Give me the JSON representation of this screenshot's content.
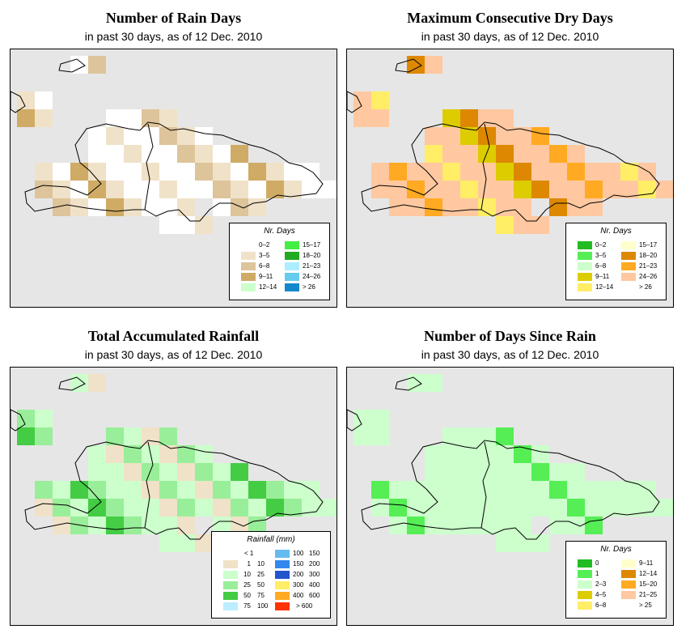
{
  "colors": {
    "ocean": "#e6e6e6",
    "border": "#000000"
  },
  "panels": [
    {
      "id": "rain-days",
      "title": "Number of Rain Days",
      "subtitle": "in past 30 days, as of  12 Dec. 2010",
      "legend": {
        "title": "Nr. Days",
        "columns": 2,
        "items": [
          {
            "label": "0–2",
            "color": "#ffffff"
          },
          {
            "label": "3–5",
            "color": "#f0e2c8"
          },
          {
            "label": "6–8",
            "color": "#ddc49a"
          },
          {
            "label": "9–11",
            "color": "#cfab66"
          },
          {
            "label": "12–14",
            "color": "#ccffcc"
          },
          {
            "label": "15–17",
            "color": "#44ee44"
          },
          {
            "label": "18–20",
            "color": "#22aa22"
          },
          {
            "label": "21–23",
            "color": "#aaeeff"
          },
          {
            "label": "24–26",
            "color": "#66ccee"
          },
          {
            "label": "> 26",
            "color": "#1188cc"
          }
        ]
      }
    },
    {
      "id": "max-dry-days",
      "title": "Maximum Consecutive Dry Days",
      "subtitle": "in past 30 days, as of  12 Dec. 2010",
      "legend": {
        "title": "Nr. Days",
        "columns": 2,
        "items": [
          {
            "label": "0–2",
            "color": "#22bb22"
          },
          {
            "label": "3–5",
            "color": "#55ee55"
          },
          {
            "label": "6–8",
            "color": "#ccffcc"
          },
          {
            "label": "9–11",
            "color": "#ddcc00"
          },
          {
            "label": "12–14",
            "color": "#ffee66"
          },
          {
            "label": "15–17",
            "color": "#ffffcc"
          },
          {
            "label": "18–20",
            "color": "#dd8800"
          },
          {
            "label": "21–23",
            "color": "#ffaa22"
          },
          {
            "label": "24–26",
            "color": "#ffc8a0"
          },
          {
            "label": "> 26",
            "color": "#ffffff"
          }
        ]
      }
    },
    {
      "id": "total-rainfall",
      "title": "Total Accumulated Rainfall",
      "subtitle": "in past 30 days, as of  12 Dec. 2010",
      "legend": {
        "title": "Rainfall (mm)",
        "columns": 2,
        "items": [
          {
            "from": "",
            "to": "< 1",
            "color": "#ffffff"
          },
          {
            "from": "1",
            "to": "10",
            "color": "#f0e2c8"
          },
          {
            "from": "10",
            "to": "25",
            "color": "#ccffcc"
          },
          {
            "from": "25",
            "to": "50",
            "color": "#99ee99"
          },
          {
            "from": "50",
            "to": "75",
            "color": "#44cc44"
          },
          {
            "from": "75",
            "to": "100",
            "color": "#bbeeff"
          },
          {
            "from": "100",
            "to": "150",
            "color": "#66bbee"
          },
          {
            "from": "150",
            "to": "200",
            "color": "#3388ee"
          },
          {
            "from": "200",
            "to": "300",
            "color": "#2255cc"
          },
          {
            "from": "300",
            "to": "400",
            "color": "#ffee66"
          },
          {
            "from": "400",
            "to": "600",
            "color": "#ffaa22"
          },
          {
            "from": "",
            "to": "> 600",
            "color": "#ff3300"
          }
        ]
      }
    },
    {
      "id": "days-since-rain",
      "title": "Number of Days Since Rain",
      "subtitle": "in past 30 days, as of  12 Dec. 2010",
      "legend": {
        "title": "Nr. Days",
        "columns": 2,
        "items": [
          {
            "label": "0",
            "color": "#22bb22"
          },
          {
            "label": "1",
            "color": "#55ee55"
          },
          {
            "label": "2–3",
            "color": "#ccffcc"
          },
          {
            "label": "4–5",
            "color": "#ddcc00"
          },
          {
            "label": "6–8",
            "color": "#ffee66"
          },
          {
            "label": "9–11",
            "color": "#ffffcc"
          },
          {
            "label": "12–14",
            "color": "#dd8800"
          },
          {
            "label": "15–20",
            "color": "#ffaa22"
          },
          {
            "label": "21–25",
            "color": "#ffc8a0"
          },
          {
            "label": "> 25",
            "color": "#ffffff"
          }
        ]
      }
    }
  ]
}
